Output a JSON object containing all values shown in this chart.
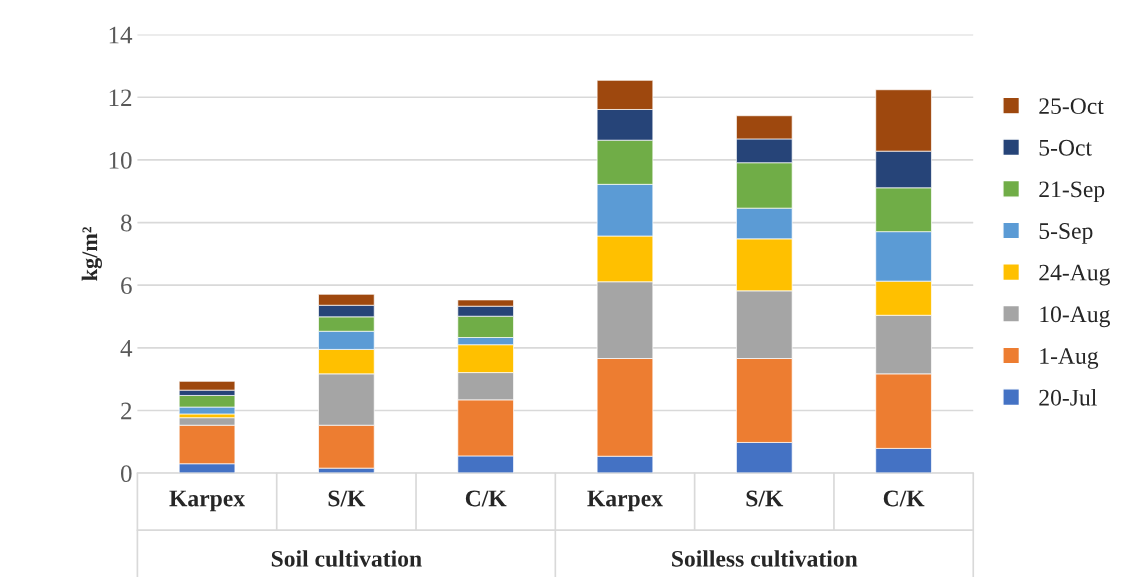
{
  "chart_data": {
    "type": "bar",
    "stacked": true,
    "ylabel": "kg/m²",
    "categories": [
      "Karpex",
      "S/K",
      "C/K",
      "Karpex",
      "S/K",
      "C/K"
    ],
    "annotations": [
      "Soil cultivation",
      "Soilless cultivation"
    ],
    "series": [
      {
        "name": "20-Jul",
        "color": "#4472c4",
        "values": [
          0.3,
          0.16,
          0.55,
          0.54,
          0.98,
          0.79
        ]
      },
      {
        "name": "1-Aug",
        "color": "#ed7d31",
        "values": [
          1.23,
          1.37,
          1.79,
          3.12,
          2.68,
          2.38
        ]
      },
      {
        "name": "10-Aug",
        "color": "#a5a5a5",
        "values": [
          0.24,
          1.64,
          0.87,
          2.45,
          2.16,
          1.87
        ]
      },
      {
        "name": "24-Aug",
        "color": "#ffc000",
        "values": [
          0.12,
          0.78,
          0.89,
          1.46,
          1.66,
          1.09
        ]
      },
      {
        "name": "5-Sep",
        "color": "#5b9bd5",
        "values": [
          0.22,
          0.58,
          0.23,
          1.65,
          0.98,
          1.58
        ]
      },
      {
        "name": "21-Sep",
        "color": "#70ad47",
        "values": [
          0.37,
          0.46,
          0.68,
          1.41,
          1.45,
          1.4
        ]
      },
      {
        "name": "5-Oct",
        "color": "#264478",
        "values": [
          0.17,
          0.37,
          0.32,
          0.98,
          0.76,
          1.17
        ]
      },
      {
        "name": "25-Oct",
        "color": "#9e480e",
        "values": [
          0.28,
          0.35,
          0.2,
          0.93,
          0.74,
          1.96
        ]
      }
    ],
    "ylim": [
      0,
      14
    ],
    "yticks": [
      0,
      2,
      4,
      6,
      8,
      10,
      12,
      14
    ],
    "grid": "y",
    "legend": "right"
  }
}
